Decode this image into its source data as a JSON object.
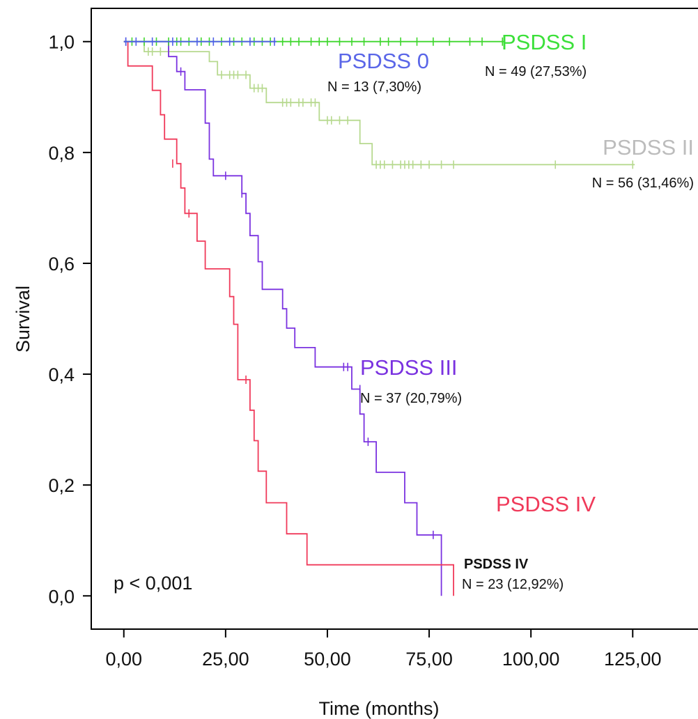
{
  "chart_data": {
    "type": "line",
    "subtype": "kaplan-meier",
    "title": "",
    "xlabel": "Time (months)",
    "ylabel": "Survival",
    "xlim": [
      -8,
      146
    ],
    "ylim": [
      -0.06,
      1.06
    ],
    "x_ticks": [
      0,
      25,
      50,
      75,
      100,
      125
    ],
    "x_tick_labels": [
      "0,00",
      "25,00",
      "50,00",
      "75,00",
      "100,00",
      "125,00"
    ],
    "y_ticks": [
      0,
      0.2,
      0.4,
      0.6,
      0.8,
      1.0
    ],
    "y_tick_labels": [
      "0,0",
      "0,2",
      "0,4",
      "0,6",
      "0,8",
      "1,0"
    ],
    "grid": false,
    "annotation": "p < 0,001",
    "series": [
      {
        "name": "PSDSS 0",
        "n_label": "N = 13 (7,30%)",
        "color": "#4f5fe8",
        "label_color": "#5a66e8",
        "steps": [
          [
            0,
            1.0
          ],
          [
            37.5,
            1.0
          ]
        ],
        "censored": [
          [
            0.5,
            1.0
          ],
          [
            3,
            1.0
          ],
          [
            7,
            1.0
          ],
          [
            12,
            1.0
          ],
          [
            18,
            1.0
          ],
          [
            22,
            1.0
          ],
          [
            26,
            1.0
          ],
          [
            31,
            1.0
          ],
          [
            37,
            1.0
          ]
        ]
      },
      {
        "name": "PSDSS I",
        "n_label": "N = 49 (27,53%)",
        "color": "#3ed62c",
        "label_color": "#3ce03a",
        "steps": [
          [
            0,
            1.0
          ],
          [
            93.5,
            1.0
          ]
        ],
        "censored": [
          [
            2,
            1.0
          ],
          [
            5,
            1.0
          ],
          [
            8,
            1.0
          ],
          [
            11,
            1.0
          ],
          [
            13,
            1.0
          ],
          [
            14,
            1.0
          ],
          [
            16,
            1.0
          ],
          [
            19,
            1.0
          ],
          [
            21,
            1.0
          ],
          [
            24,
            1.0
          ],
          [
            27,
            1.0
          ],
          [
            29,
            1.0
          ],
          [
            32,
            1.0
          ],
          [
            34,
            1.0
          ],
          [
            36,
            1.0
          ],
          [
            39,
            1.0
          ],
          [
            41,
            1.0
          ],
          [
            43,
            1.0
          ],
          [
            46,
            1.0
          ],
          [
            48,
            1.0
          ],
          [
            50,
            1.0
          ],
          [
            53,
            1.0
          ],
          [
            56,
            1.0
          ],
          [
            59,
            1.0
          ],
          [
            63,
            1.0
          ],
          [
            65,
            1.0
          ],
          [
            68,
            1.0
          ],
          [
            72,
            1.0
          ],
          [
            76,
            1.0
          ],
          [
            80,
            1.0
          ],
          [
            85,
            1.0
          ],
          [
            88,
            1.0
          ],
          [
            93,
            1.0
          ]
        ]
      },
      {
        "name": "PSDSS II",
        "n_label": "N = 56 (31,46%)",
        "color": "#b7d98f",
        "label_color": "#bcbcbc",
        "steps": [
          [
            0,
            1.0
          ],
          [
            5,
            1.0
          ],
          [
            5,
            0.982
          ],
          [
            21,
            0.982
          ],
          [
            21,
            0.964
          ],
          [
            23,
            0.964
          ],
          [
            23,
            0.94
          ],
          [
            31,
            0.94
          ],
          [
            31,
            0.916
          ],
          [
            35,
            0.916
          ],
          [
            35,
            0.89
          ],
          [
            48,
            0.89
          ],
          [
            48,
            0.858
          ],
          [
            58,
            0.858
          ],
          [
            58,
            0.816
          ],
          [
            61,
            0.816
          ],
          [
            61,
            0.778
          ],
          [
            125.5,
            0.778
          ]
        ],
        "censored": [
          [
            6,
            0.982
          ],
          [
            7,
            0.982
          ],
          [
            9,
            0.982
          ],
          [
            11,
            0.982
          ],
          [
            24,
            0.94
          ],
          [
            26,
            0.94
          ],
          [
            27,
            0.94
          ],
          [
            28,
            0.94
          ],
          [
            30,
            0.94
          ],
          [
            32,
            0.916
          ],
          [
            33,
            0.916
          ],
          [
            34,
            0.916
          ],
          [
            39,
            0.89
          ],
          [
            40,
            0.89
          ],
          [
            41,
            0.89
          ],
          [
            43,
            0.89
          ],
          [
            44,
            0.89
          ],
          [
            46,
            0.89
          ],
          [
            47,
            0.89
          ],
          [
            50,
            0.858
          ],
          [
            51,
            0.858
          ],
          [
            53,
            0.858
          ],
          [
            55,
            0.858
          ],
          [
            62,
            0.778
          ],
          [
            63,
            0.778
          ],
          [
            64,
            0.778
          ],
          [
            66,
            0.778
          ],
          [
            68,
            0.778
          ],
          [
            69,
            0.778
          ],
          [
            70,
            0.778
          ],
          [
            71,
            0.778
          ],
          [
            73,
            0.778
          ],
          [
            75,
            0.778
          ],
          [
            78,
            0.778
          ],
          [
            81,
            0.778
          ],
          [
            106,
            0.778
          ],
          [
            125,
            0.778
          ]
        ]
      },
      {
        "name": "PSDSS III",
        "n_label": "N = 37 (20,79%)",
        "color": "#7a32e0",
        "label_color": "#7a32e0",
        "steps": [
          [
            0,
            1.0
          ],
          [
            11,
            1.0
          ],
          [
            11,
            0.973
          ],
          [
            13,
            0.973
          ],
          [
            13,
            0.946
          ],
          [
            15,
            0.946
          ],
          [
            15,
            0.913
          ],
          [
            20,
            0.913
          ],
          [
            20,
            0.853
          ],
          [
            21,
            0.853
          ],
          [
            21,
            0.788
          ],
          [
            22,
            0.788
          ],
          [
            22,
            0.758
          ],
          [
            29,
            0.758
          ],
          [
            29,
            0.726
          ],
          [
            30,
            0.726
          ],
          [
            30,
            0.69
          ],
          [
            31,
            0.69
          ],
          [
            31,
            0.65
          ],
          [
            33,
            0.65
          ],
          [
            33,
            0.603
          ],
          [
            34,
            0.603
          ],
          [
            34,
            0.553
          ],
          [
            39,
            0.553
          ],
          [
            39,
            0.518
          ],
          [
            40,
            0.518
          ],
          [
            40,
            0.483
          ],
          [
            42,
            0.483
          ],
          [
            42,
            0.448
          ],
          [
            47,
            0.448
          ],
          [
            47,
            0.413
          ],
          [
            56,
            0.413
          ],
          [
            56,
            0.373
          ],
          [
            58,
            0.373
          ],
          [
            58,
            0.328
          ],
          [
            59,
            0.328
          ],
          [
            59,
            0.278
          ],
          [
            62,
            0.278
          ],
          [
            62,
            0.223
          ],
          [
            69,
            0.223
          ],
          [
            69,
            0.168
          ],
          [
            72,
            0.168
          ],
          [
            72,
            0.11
          ],
          [
            78,
            0.11
          ],
          [
            78,
            0.0
          ]
        ],
        "censored": [
          [
            0.5,
            1.0
          ],
          [
            14,
            0.946
          ],
          [
            25,
            0.758
          ],
          [
            29,
            0.726
          ],
          [
            54,
            0.413
          ],
          [
            55,
            0.413
          ],
          [
            58,
            0.373
          ],
          [
            60,
            0.278
          ],
          [
            76,
            0.11
          ]
        ]
      },
      {
        "name": "PSDSS IV",
        "n_label": "N = 23 (12,92%)",
        "color": "#f03a5a",
        "label_color": "#f03a5a",
        "steps": [
          [
            0,
            1.0
          ],
          [
            1,
            1.0
          ],
          [
            1,
            0.956
          ],
          [
            7,
            0.956
          ],
          [
            7,
            0.912
          ],
          [
            9,
            0.912
          ],
          [
            9,
            0.868
          ],
          [
            10,
            0.868
          ],
          [
            10,
            0.824
          ],
          [
            13,
            0.824
          ],
          [
            13,
            0.78
          ],
          [
            14,
            0.78
          ],
          [
            14,
            0.736
          ],
          [
            15,
            0.736
          ],
          [
            15,
            0.69
          ],
          [
            18,
            0.69
          ],
          [
            18,
            0.64
          ],
          [
            20,
            0.64
          ],
          [
            20,
            0.59
          ],
          [
            26,
            0.59
          ],
          [
            26,
            0.54
          ],
          [
            27,
            0.54
          ],
          [
            27,
            0.49
          ],
          [
            28,
            0.49
          ],
          [
            28,
            0.39
          ],
          [
            31,
            0.39
          ],
          [
            31,
            0.335
          ],
          [
            32,
            0.335
          ],
          [
            32,
            0.28
          ],
          [
            33,
            0.28
          ],
          [
            33,
            0.225
          ],
          [
            35,
            0.225
          ],
          [
            35,
            0.168
          ],
          [
            40,
            0.168
          ],
          [
            40,
            0.112
          ],
          [
            45,
            0.112
          ],
          [
            45,
            0.056
          ],
          [
            81,
            0.056
          ],
          [
            81,
            0.0
          ]
        ],
        "censored": [
          [
            12,
            0.78
          ],
          [
            16,
            0.69
          ],
          [
            30,
            0.39
          ]
        ]
      }
    ],
    "labels": [
      {
        "text": "PSDSS I",
        "series": 1,
        "kind": "name"
      },
      {
        "text": "N = 49 (27,53%)",
        "series": 1,
        "kind": "n"
      },
      {
        "text": "PSDSS 0",
        "series": 0,
        "kind": "name"
      },
      {
        "text": "N = 13 (7,30%)",
        "series": 0,
        "kind": "n"
      },
      {
        "text": "PSDSS II",
        "series": 2,
        "kind": "name"
      },
      {
        "text": "N = 56 (31,46%)",
        "series": 2,
        "kind": "n"
      },
      {
        "text": "PSDSS III",
        "series": 3,
        "kind": "name"
      },
      {
        "text": "N = 37 (20,79%)",
        "series": 3,
        "kind": "n"
      },
      {
        "text": "PSDSS IV",
        "series": 4,
        "kind": "name"
      },
      {
        "text": "PSDSS IV",
        "series": 4,
        "kind": "name-small"
      },
      {
        "text": "N = 23 (12,92%)",
        "series": 4,
        "kind": "n"
      }
    ]
  }
}
